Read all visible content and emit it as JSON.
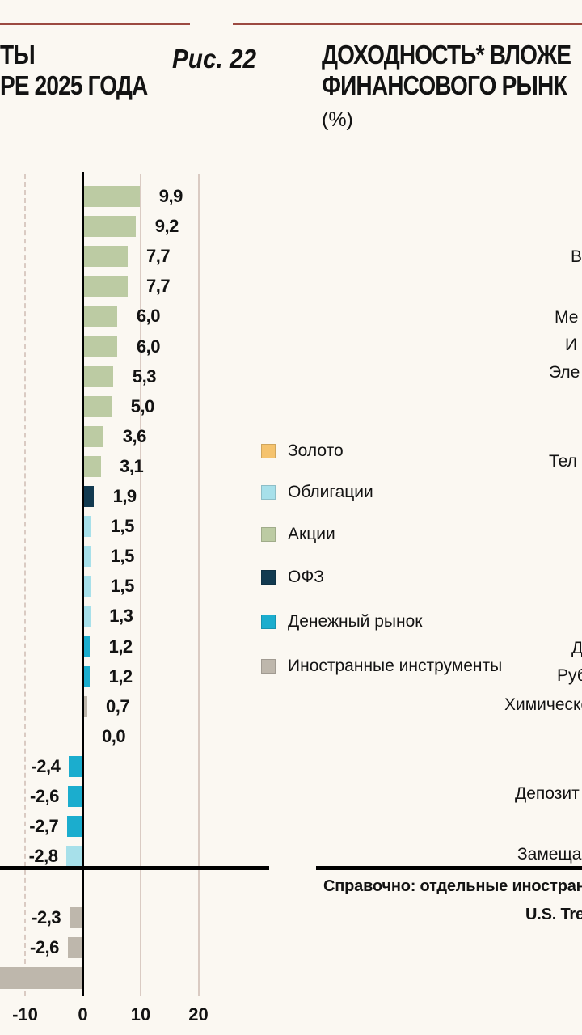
{
  "page": {
    "background": "#FBF8F2",
    "accent_rule_color": "#9C4A41"
  },
  "header": {
    "left_title_line1": "ТЫ",
    "left_title_line2": "РЕ 2025 ГОДА",
    "figure_label": "Рис. 22",
    "right_title_line1": "ДОХОДНОСТЬ* ВЛОЖЕ",
    "right_title_line2": "ФИНАНСОВОГО РЫНК",
    "right_unit": "(%)"
  },
  "legend": {
    "items": [
      {
        "label": "Золото",
        "color": "#F5C36E"
      },
      {
        "label": "Облигации",
        "color": "#A7E0EA"
      },
      {
        "label": "Акции",
        "color": "#BCCBA3"
      },
      {
        "label": "ОФЗ",
        "color": "#123A50"
      },
      {
        "label": "Денежный рынок",
        "color": "#1BADCE"
      },
      {
        "label": "Иностранные инструменты",
        "color": "#BEB7AC"
      }
    ]
  },
  "chart_data": {
    "type": "bar",
    "orientation": "horizontal",
    "title": "Доходность вложений (левая панель, подписи категорий обрезаны)",
    "x_axis": {
      "ticks": [
        -10,
        0,
        10,
        20
      ],
      "tick_labels": [
        "-10",
        "0",
        "10",
        "20"
      ],
      "unit": "%"
    },
    "grid": "vertical",
    "bars": [
      {
        "value": 9.9,
        "display": "9,9",
        "series": "Акции"
      },
      {
        "value": 9.2,
        "display": "9,2",
        "series": "Акции"
      },
      {
        "value": 7.7,
        "display": "7,7",
        "series": "Акции"
      },
      {
        "value": 7.7,
        "display": "7,7",
        "series": "Акции"
      },
      {
        "value": 6.0,
        "display": "6,0",
        "series": "Акции"
      },
      {
        "value": 6.0,
        "display": "6,0",
        "series": "Акции"
      },
      {
        "value": 5.3,
        "display": "5,3",
        "series": "Акции"
      },
      {
        "value": 5.0,
        "display": "5,0",
        "series": "Акции"
      },
      {
        "value": 3.6,
        "display": "3,6",
        "series": "Акции"
      },
      {
        "value": 3.1,
        "display": "3,1",
        "series": "Акции"
      },
      {
        "value": 1.9,
        "display": "1,9",
        "series": "ОФЗ"
      },
      {
        "value": 1.5,
        "display": "1,5",
        "series": "Облигации"
      },
      {
        "value": 1.5,
        "display": "1,5",
        "series": "Облигации"
      },
      {
        "value": 1.5,
        "display": "1,5",
        "series": "Облигации"
      },
      {
        "value": 1.3,
        "display": "1,3",
        "series": "Облигации"
      },
      {
        "value": 1.2,
        "display": "1,2",
        "series": "Денежный рынок"
      },
      {
        "value": 1.2,
        "display": "1,2",
        "series": "Денежный рынок"
      },
      {
        "value": 0.7,
        "display": "0,7",
        "series": "Иностранные инструменты"
      },
      {
        "value": 0.0,
        "display": "0,0",
        "series": null
      },
      {
        "value": -2.4,
        "display": "-2,4",
        "series": "Денежный рынок"
      },
      {
        "value": -2.6,
        "display": "-2,6",
        "series": "Денежный рынок"
      },
      {
        "value": -2.7,
        "display": "-2,7",
        "series": "Денежный рынок"
      },
      {
        "value": -2.8,
        "display": "-2,8",
        "series": "Облигации"
      }
    ],
    "reference_bars": [
      {
        "value": -2.3,
        "display": "-2,3",
        "series": "Иностранные инструменты"
      },
      {
        "value": -2.6,
        "display": "-2,6",
        "series": "Иностранные инструменты"
      },
      {
        "value": null,
        "display": "",
        "series": "Иностранные инструменты",
        "clipped_off_left_edge": true
      }
    ]
  },
  "right_panel": {
    "label_fragments": [
      "В",
      "Ме",
      "И",
      "Эле",
      "Тел",
      "Д",
      "Руб",
      "Химическо",
      "Депозит",
      "Замещаю"
    ],
    "reference_heading_fragment": "Справочно: отдельные иностранн",
    "reference_item_fragment": "U.S. Tre"
  }
}
